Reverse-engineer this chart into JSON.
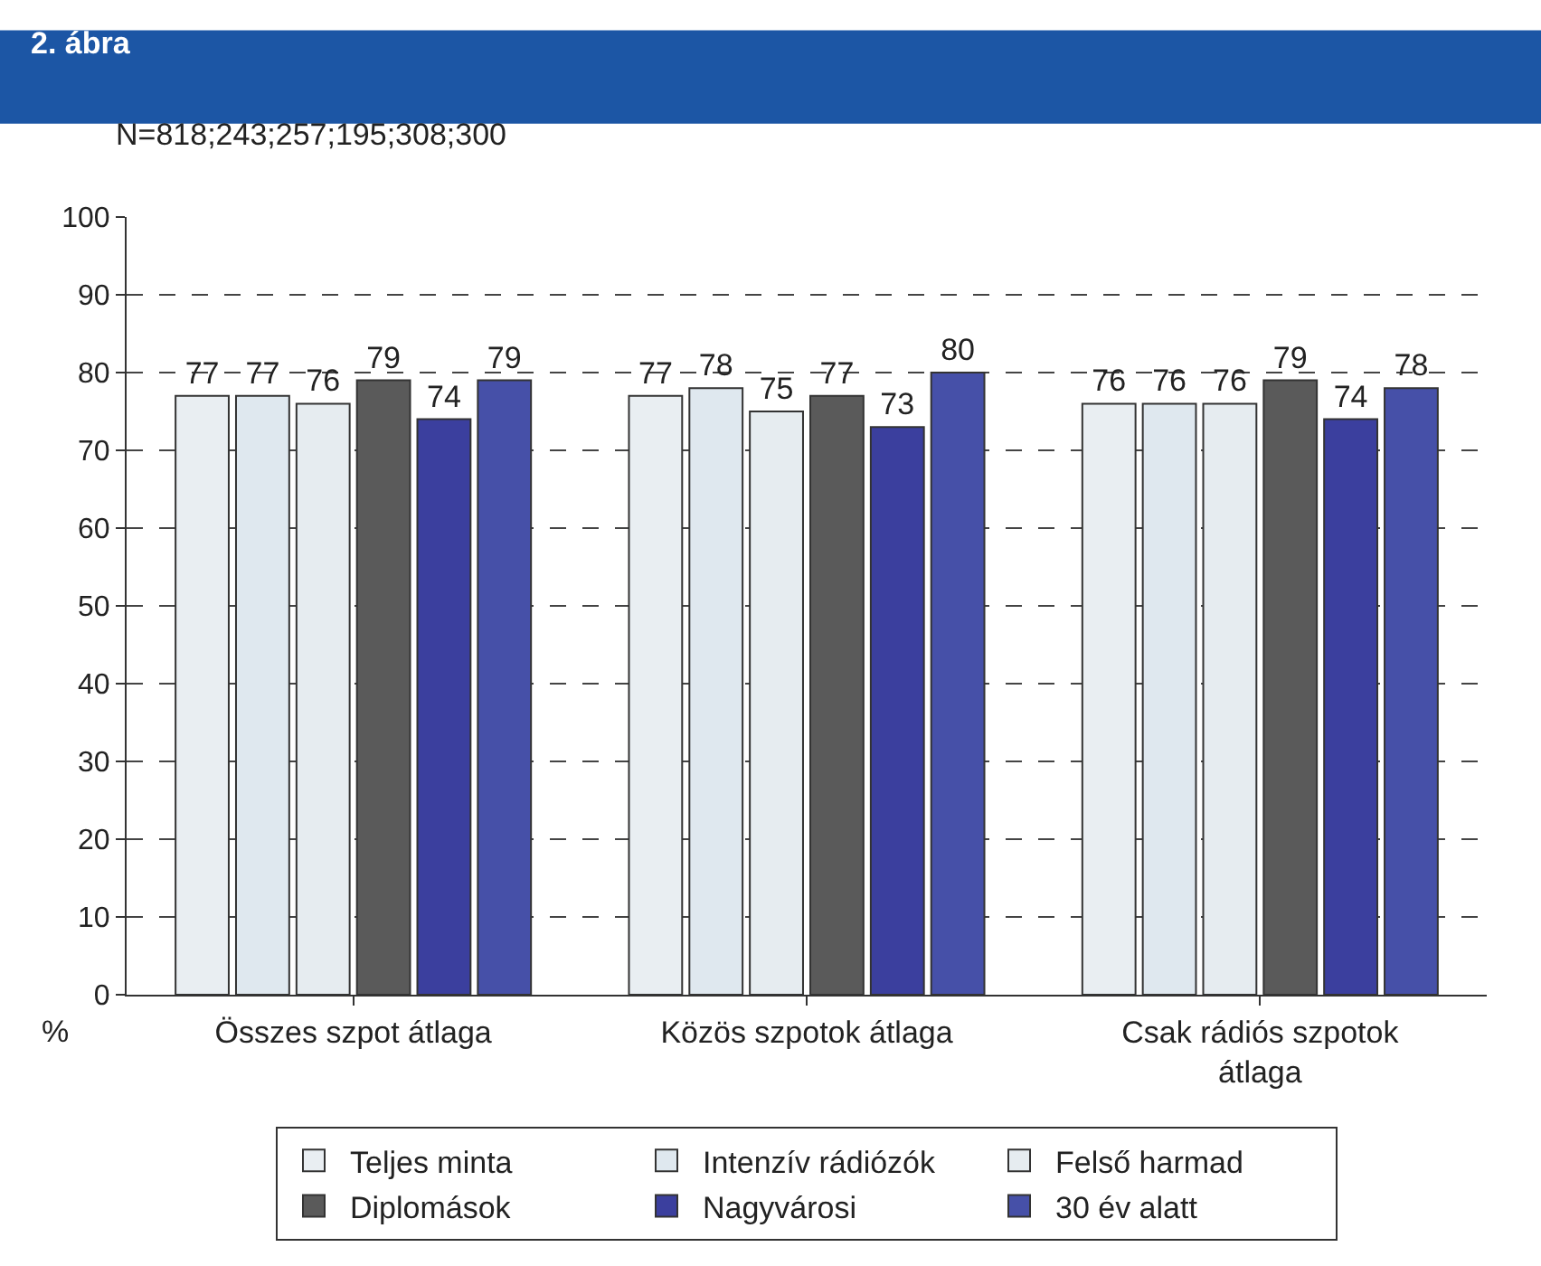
{
  "chart_data": {
    "type": "bar",
    "title": "2. ábra",
    "subtitle": "N=818;243;257;195;308;300",
    "ylabel": "%",
    "categories": [
      "Összes szpot átlaga",
      "Közös szpotok átlaga",
      "Csak rádiós szpotok átlaga"
    ],
    "series": [
      {
        "name": "Teljes minta",
        "color": "#e9eef2",
        "values": [
          77,
          77,
          76
        ]
      },
      {
        "name": "Intenzív rádiózók",
        "color": "#dfe8ef",
        "values": [
          77,
          78,
          76
        ]
      },
      {
        "name": "Felső harmad",
        "color": "#e6ecf0",
        "values": [
          76,
          75,
          76
        ]
      },
      {
        "name": "Diplomások",
        "color": "#5a5a5a",
        "values": [
          79,
          77,
          79
        ]
      },
      {
        "name": "Nagyvárosi",
        "color": "#3b3f9e",
        "values": [
          74,
          73,
          74
        ]
      },
      {
        "name": "30 év alatt",
        "color": "#4650a8",
        "values": [
          79,
          80,
          78
        ]
      }
    ],
    "ylim": [
      0,
      100
    ],
    "yticks": [
      0,
      10,
      20,
      30,
      40,
      50,
      60,
      70,
      80,
      90,
      100
    ],
    "grid": "y",
    "legend": "bottom",
    "data_labels": true
  }
}
